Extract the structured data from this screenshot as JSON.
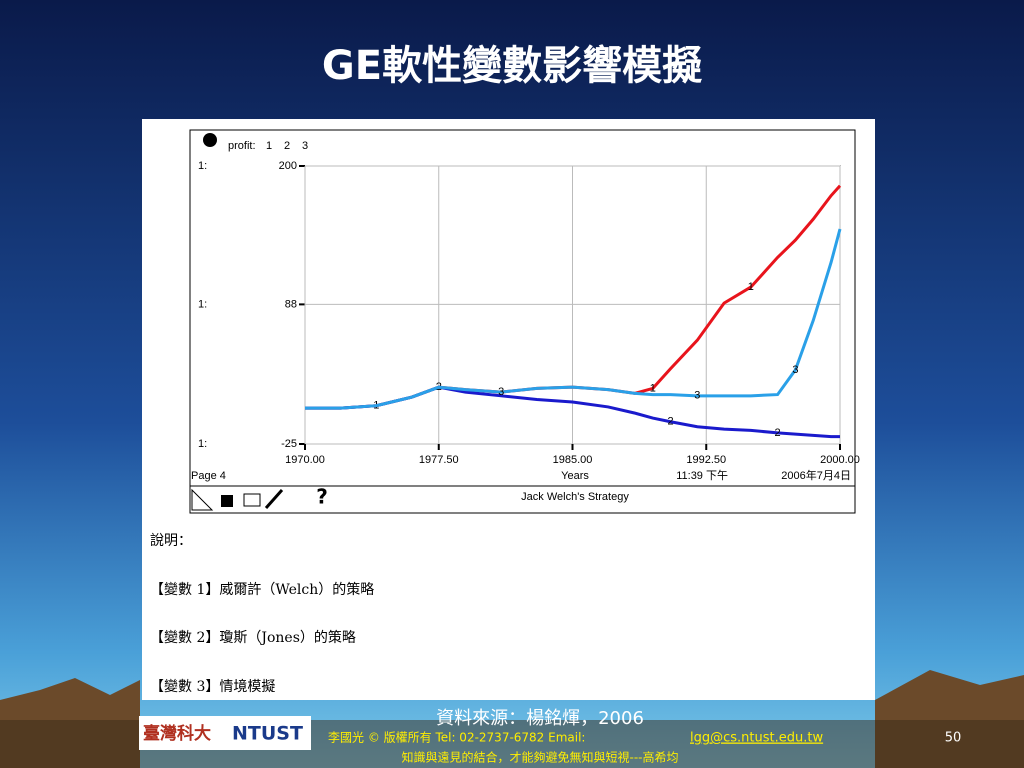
{
  "slide": {
    "title": "GE軟性變數影響模擬"
  },
  "chart_data": {
    "type": "line",
    "title": "Jack Welch's Strategy",
    "legend_label": "profit:",
    "scale_label": "1:",
    "xlabel": "Years",
    "page_label": "Page 4",
    "time": "11:39 下午",
    "date": "2006年7月4日",
    "x": [
      1970,
      1972,
      1974,
      1976,
      1977.5,
      1979,
      1981,
      1983,
      1985,
      1987,
      1988.5,
      1989.5,
      1990.5,
      1992,
      1993.5,
      1995,
      1996.5,
      1997.5,
      1998.5,
      1999.5,
      2000
    ],
    "series": [
      {
        "name": "1",
        "color": "#e8141c",
        "values": [
          4,
          4,
          6,
          13,
          21,
          19,
          17,
          20,
          21,
          19,
          16,
          20,
          36,
          59,
          89,
          102,
          126,
          140,
          157,
          176,
          184
        ]
      },
      {
        "name": "2",
        "color": "#1a1acc",
        "values": [
          4,
          4,
          6,
          13,
          21,
          17,
          14,
          11,
          9,
          5,
          0,
          -4,
          -7,
          -11,
          -13,
          -14,
          -16,
          -17,
          -18,
          -19,
          -19
        ]
      },
      {
        "name": "3",
        "color": "#2aa0e8",
        "values": [
          4,
          4,
          6,
          13,
          21,
          19,
          17,
          20,
          21,
          19,
          16,
          15,
          15,
          14,
          14,
          14,
          15,
          35,
          75,
          122,
          149
        ]
      }
    ],
    "xlim": [
      1970,
      2000
    ],
    "xticks": [
      {
        "value": 1970,
        "label": "1970.00"
      },
      {
        "value": 1977.5,
        "label": "1977.50"
      },
      {
        "value": 1985,
        "label": "1985.00"
      },
      {
        "value": 1992.5,
        "label": "1992.50"
      },
      {
        "value": 2000,
        "label": "2000.00"
      }
    ],
    "ylim": [
      -25,
      200
    ],
    "yticks": [
      -25,
      88,
      200
    ],
    "grid": true
  },
  "notes": {
    "heading": "說明：",
    "items": [
      "【變數 1】威爾許（Welch）的策略",
      "【變數 2】瓊斯（Jones）的策略",
      "【變數 3】情境模擬"
    ]
  },
  "footer": {
    "source": "資料來源：楊銘煇，2006",
    "copyright": "李國光 © 版權所有  Tel: 02-2737-6782  Email:",
    "email": "lgg@cs.ntust.edu.tw",
    "page": "50",
    "motto": "知識與遠見的結合，才能夠避免無知與短視---高希均",
    "logo_left": "臺灣科大",
    "logo_right": "NTUST"
  }
}
